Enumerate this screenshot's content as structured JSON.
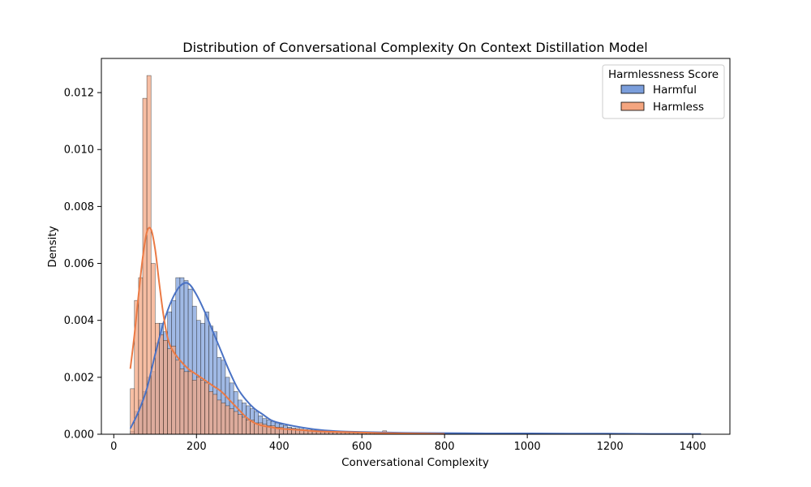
{
  "chart_data": {
    "type": "histogram",
    "title": "Distribution of Conversational Complexity On Context Distillation Model",
    "xlabel": "Conversational Complexity",
    "ylabel": "Density",
    "xlim": [
      -30,
      1490
    ],
    "ylim": [
      0,
      0.0132
    ],
    "xticks": [
      0,
      200,
      400,
      600,
      800,
      1000,
      1200,
      1400
    ],
    "yticks": [
      0.0,
      0.002,
      0.004,
      0.006,
      0.008,
      0.01,
      0.012
    ],
    "ytick_labels": [
      "0.000",
      "0.002",
      "0.004",
      "0.006",
      "0.008",
      "0.010",
      "0.012"
    ],
    "grid": false,
    "legend": {
      "title": "Harmlessness Score",
      "position": "top-right",
      "entries": [
        "Harmful",
        "Harmless"
      ]
    },
    "colors": {
      "Harmful_fill": "#7b9edb",
      "Harmful_line": "#4a72c4",
      "Harmless_fill": "#f4a57f",
      "Harmless_line": "#eb7a45",
      "overlap_fill": "#8c8cb6"
    },
    "bin_start": 40,
    "bin_width": 10,
    "series": [
      {
        "name": "Harmful",
        "values": [
          0.0001,
          0.0008,
          0.0012,
          0.0015,
          0.002,
          0.0022,
          0.0032,
          0.0039,
          0.0036,
          0.0043,
          0.0047,
          0.0055,
          0.0055,
          0.0054,
          0.0051,
          0.0045,
          0.004,
          0.0039,
          0.0043,
          0.0038,
          0.0036,
          0.0027,
          0.0026,
          0.002,
          0.0018,
          0.0015,
          0.0012,
          0.0011,
          0.001,
          0.0009,
          0.0008,
          0.00065,
          0.00055,
          0.0005,
          0.00045,
          0.0004,
          0.00035,
          0.0003,
          0.00025,
          0.00022,
          0.0002,
          0.00018,
          0.00016,
          0.00015,
          0.00014,
          0.00013,
          0.00012,
          0.0001,
          0.0001,
          9e-05,
          8e-05,
          8e-05,
          7e-05,
          7e-05,
          6e-05,
          6e-05,
          5e-05,
          5e-05,
          5e-05,
          4e-05,
          4e-05,
          4e-05,
          4e-05,
          3e-05,
          3e-05,
          3e-05,
          3e-05,
          3e-05,
          2e-05,
          2e-05,
          2e-05,
          2e-05,
          2e-05,
          2e-05,
          2e-05,
          2e-05,
          1e-05,
          1e-05,
          1e-05,
          1e-05,
          1e-05,
          1e-05,
          1e-05,
          1e-05,
          1e-05,
          1e-05,
          1e-05,
          1e-05,
          1e-05,
          1e-05,
          1e-05,
          1e-05,
          1e-05,
          1e-05,
          1e-05,
          1e-05,
          1e-05,
          1e-05,
          1e-05,
          1e-05,
          1e-05,
          1e-05,
          1e-05,
          1e-05,
          1e-05,
          1e-05,
          1e-05,
          1e-05,
          1e-05,
          1e-05,
          1e-05,
          1e-05,
          1e-05,
          1e-05,
          1e-05,
          1e-05,
          1e-05,
          1e-05,
          1e-05,
          1e-05,
          1e-05,
          1e-05,
          1e-05,
          1e-05,
          1e-05,
          1e-05,
          1e-05,
          1e-05,
          1e-05,
          1e-05,
          1e-05,
          1e-05,
          1e-05,
          1e-05
        ]
      },
      {
        "name": "Harmless",
        "values": [
          0.0016,
          0.0047,
          0.0055,
          0.0118,
          0.0126,
          0.006,
          0.0039,
          0.0035,
          0.0033,
          0.003,
          0.0031,
          0.0026,
          0.0023,
          0.0022,
          0.0022,
          0.0019,
          0.002,
          0.0019,
          0.0018,
          0.0015,
          0.0014,
          0.0012,
          0.0011,
          0.001,
          0.0009,
          0.0008,
          0.0007,
          0.0006,
          0.0005,
          0.0005,
          0.0004,
          0.0004,
          0.00035,
          0.0003,
          0.0003,
          0.00025,
          0.00025,
          0.0002,
          0.0002,
          0.00018,
          0.00016,
          0.00015,
          0.00014,
          0.00012,
          0.00011,
          0.0001,
          0.0001,
          9e-05,
          8e-05,
          8e-05,
          7e-05,
          7e-05,
          6e-05,
          6e-05,
          5e-05,
          5e-05,
          5e-05,
          4e-05,
          4e-05,
          4e-05,
          4e-05,
          0.00012,
          3e-05,
          3e-05,
          3e-05,
          2e-05,
          2e-05,
          2e-05,
          2e-05,
          2e-05,
          1e-05,
          1e-05,
          1e-05,
          1e-05,
          1e-05,
          1e-05,
          1e-05,
          1e-05
        ]
      }
    ],
    "kde": [
      {
        "name": "Harmful",
        "x": [
          40,
          60,
          80,
          100,
          120,
          140,
          160,
          180,
          200,
          220,
          240,
          260,
          280,
          300,
          320,
          340,
          360,
          380,
          400,
          450,
          500,
          550,
          600,
          700,
          800,
          900,
          1000,
          1100,
          1200,
          1300,
          1420
        ],
        "y": [
          0.0002,
          0.0008,
          0.0016,
          0.0028,
          0.0039,
          0.0047,
          0.0052,
          0.0053,
          0.0049,
          0.0043,
          0.0036,
          0.0029,
          0.0022,
          0.0016,
          0.0012,
          0.0009,
          0.0007,
          0.0005,
          0.0004,
          0.00025,
          0.00015,
          0.0001,
          8e-05,
          5e-05,
          4e-05,
          3e-05,
          3e-05,
          2e-05,
          2e-05,
          1e-05,
          1e-05
        ]
      },
      {
        "name": "Harmless",
        "x": [
          40,
          50,
          60,
          70,
          80,
          90,
          100,
          110,
          120,
          130,
          140,
          160,
          180,
          200,
          220,
          240,
          260,
          280,
          300,
          320,
          340,
          360,
          380,
          400,
          450,
          500,
          550,
          600,
          650,
          700,
          750,
          800
        ],
        "y": [
          0.0023,
          0.0035,
          0.0049,
          0.0062,
          0.0071,
          0.0072,
          0.0065,
          0.0053,
          0.0042,
          0.0034,
          0.003,
          0.0026,
          0.0023,
          0.0021,
          0.0019,
          0.0017,
          0.0015,
          0.0012,
          0.0009,
          0.0006,
          0.0004,
          0.0003,
          0.00025,
          0.0002,
          0.00015,
          0.0001,
          8e-05,
          6e-05,
          4e-05,
          3e-05,
          2e-05,
          1e-05
        ]
      }
    ]
  }
}
